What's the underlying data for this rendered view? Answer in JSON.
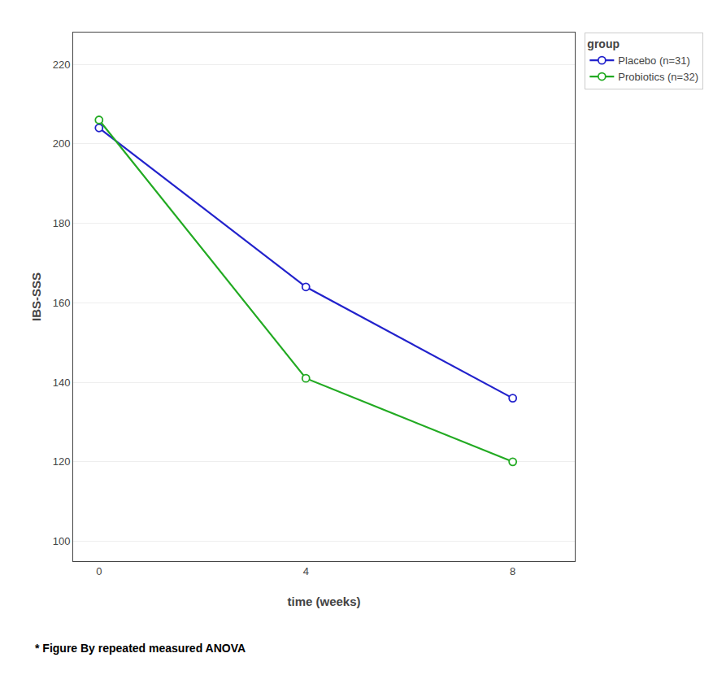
{
  "chart_data": {
    "type": "line",
    "x": [
      0,
      4,
      8
    ],
    "series": [
      {
        "name": "Placebo (n=31)",
        "color": "#2222cc",
        "values": [
          204,
          164,
          136
        ]
      },
      {
        "name": "Probiotics (n=32)",
        "color": "#22aa22",
        "values": [
          206,
          141,
          120
        ]
      }
    ],
    "marker": "circle",
    "xlabel": "time (weeks)",
    "ylabel": "IBS-SSS",
    "legend_title": "group",
    "footnote": "* Figure By repeated measured ANOVA",
    "xlim": [
      -0.5,
      9.2
    ],
    "ylim": [
      95,
      228
    ],
    "xticks": [
      0,
      4,
      8
    ],
    "yticks": [
      100,
      120,
      140,
      160,
      180,
      200,
      220
    ],
    "grid": "y",
    "legend": "right"
  }
}
